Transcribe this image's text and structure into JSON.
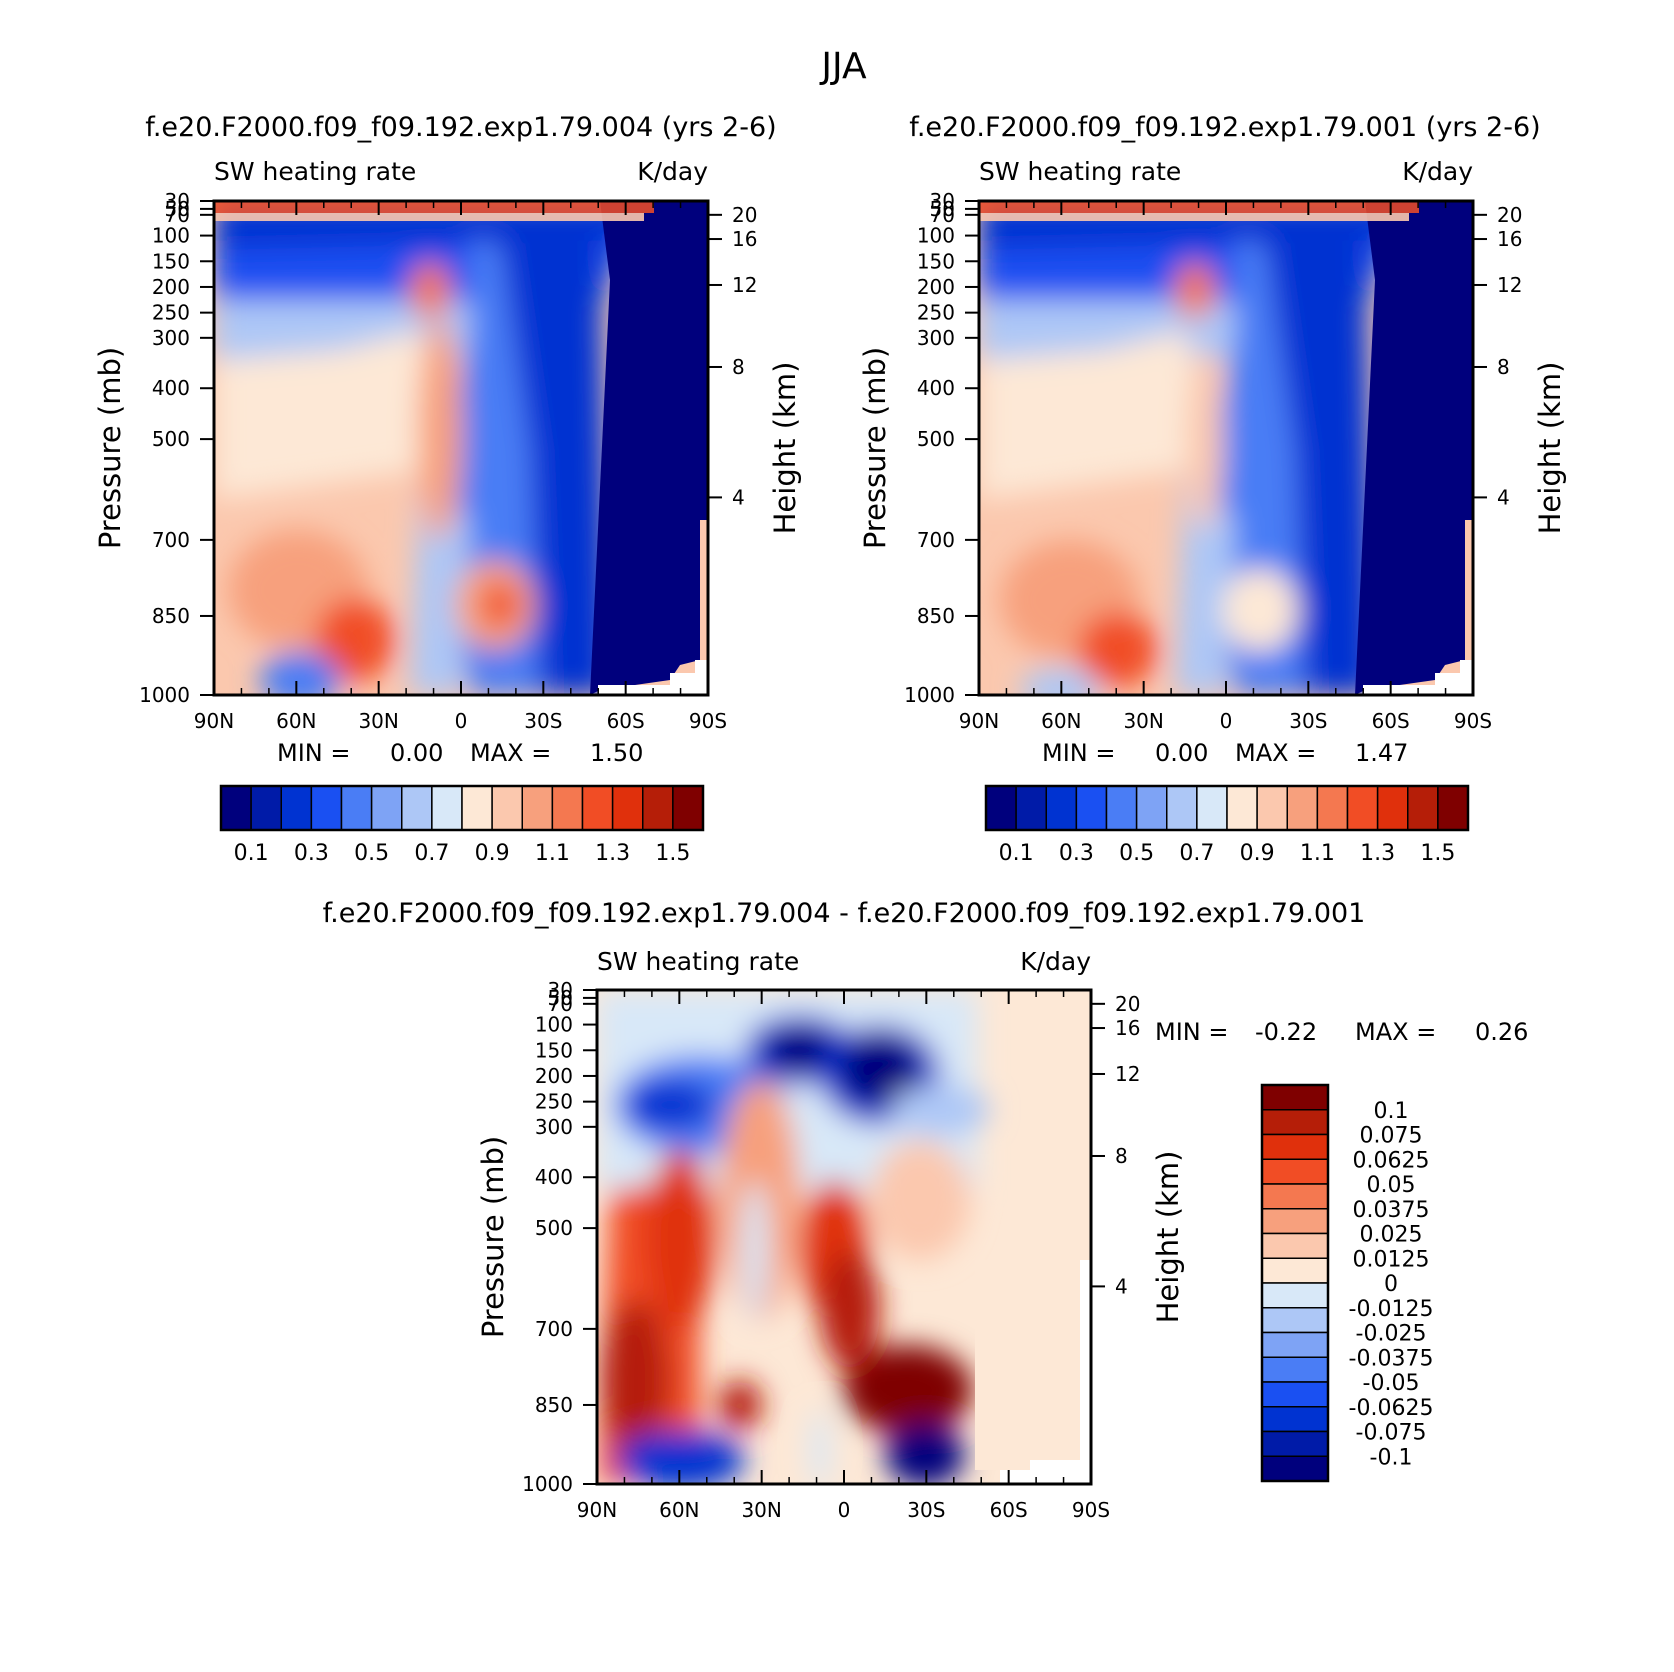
{
  "title": "JJA",
  "colors": {
    "absolute": [
      "#00007d",
      "#001ba8",
      "#0033d1",
      "#1a50f2",
      "#4a7df5",
      "#7ea3f5",
      "#adc7f6",
      "#d8e8f8",
      "#fde8d6",
      "#fbc8ae",
      "#f7a07d",
      "#f47850",
      "#f14d25",
      "#e0300c",
      "#b51e08",
      "#7f0000"
    ],
    "difference": [
      "#00007d",
      "#001ba8",
      "#0033d1",
      "#1a50f2",
      "#4a7df5",
      "#7ea3f5",
      "#adc7f6",
      "#d8e8f8",
      "#fde8d6",
      "#fbc8ae",
      "#f7a07d",
      "#f47850",
      "#f14d25",
      "#e0300c",
      "#b51e08",
      "#7f0000"
    ]
  },
  "chart_data": [
    {
      "type": "heatmap",
      "subtitle": "f.e20.F2000.f09_f09.192.exp1.79.004 (yrs 2-6)",
      "left_label": "SW heating rate",
      "right_label": "K/day",
      "ylabel": "Pressure (mb)",
      "ylabel_right": "Height (km)",
      "x_ticks": [
        "90N",
        "60N",
        "30N",
        "0",
        "30S",
        "60S",
        "90S"
      ],
      "y_ticks": [
        "30",
        "50",
        "70",
        "100",
        "150",
        "200",
        "250",
        "300",
        "400",
        "500",
        "700",
        "850",
        "1000"
      ],
      "y_ticks_right": [
        "20",
        "16",
        "12",
        "8",
        "4"
      ],
      "min_label": "MIN =",
      "min_value": "0.00",
      "max_label": "MAX =",
      "max_value": "1.50",
      "colorbar_labels": [
        "0.1",
        "0.3",
        "0.5",
        "0.7",
        "0.9",
        "1.1",
        "1.3",
        "1.5"
      ]
    },
    {
      "type": "heatmap",
      "subtitle": "f.e20.F2000.f09_f09.192.exp1.79.001 (yrs 2-6)",
      "left_label": "SW heating rate",
      "right_label": "K/day",
      "ylabel": "Pressure (mb)",
      "ylabel_right": "Height (km)",
      "x_ticks": [
        "90N",
        "60N",
        "30N",
        "0",
        "30S",
        "60S",
        "90S"
      ],
      "y_ticks": [
        "30",
        "50",
        "70",
        "100",
        "150",
        "200",
        "250",
        "300",
        "400",
        "500",
        "700",
        "850",
        "1000"
      ],
      "y_ticks_right": [
        "20",
        "16",
        "12",
        "8",
        "4"
      ],
      "min_label": "MIN =",
      "min_value": "0.00",
      "max_label": "MAX =",
      "max_value": "1.47",
      "colorbar_labels": [
        "0.1",
        "0.3",
        "0.5",
        "0.7",
        "0.9",
        "1.1",
        "1.3",
        "1.5"
      ]
    },
    {
      "type": "heatmap",
      "subtitle": "f.e20.F2000.f09_f09.192.exp1.79.004 - f.e20.F2000.f09_f09.192.exp1.79.001",
      "left_label": "SW heating rate",
      "right_label": "K/day",
      "ylabel": "Pressure (mb)",
      "ylabel_right": "Height (km)",
      "x_ticks": [
        "90N",
        "60N",
        "30N",
        "0",
        "30S",
        "60S",
        "90S"
      ],
      "y_ticks": [
        "30",
        "50",
        "70",
        "100",
        "150",
        "200",
        "250",
        "300",
        "400",
        "500",
        "700",
        "850",
        "1000"
      ],
      "y_ticks_right": [
        "20",
        "16",
        "12",
        "8",
        "4"
      ],
      "min_label": "MIN =",
      "min_value": "-0.22",
      "max_label": "MAX =",
      "max_value": "0.26",
      "colorbar_labels": [
        "0.1",
        "0.075",
        "0.0625",
        "0.05",
        "0.0375",
        "0.025",
        "0.0125",
        "0",
        "-0.0125",
        "-0.025",
        "-0.0375",
        "-0.05",
        "-0.0625",
        "-0.075",
        "-0.1"
      ]
    }
  ]
}
